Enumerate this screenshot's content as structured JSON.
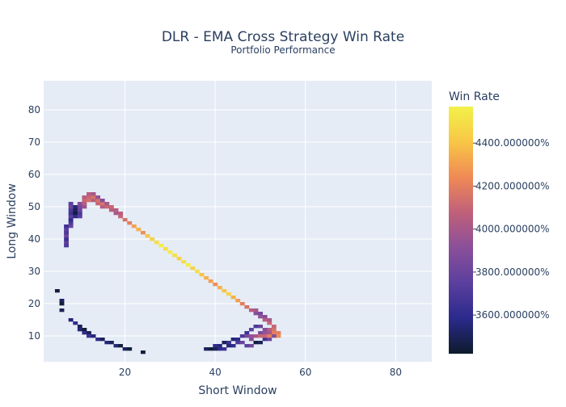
{
  "chart_data": {
    "type": "heatmap",
    "title": "DLR - EMA Cross Strategy Win Rate",
    "subtitle": "Portfolio Performance",
    "xlabel": "Short Window",
    "ylabel": "Long Window",
    "xlim": [
      2,
      88
    ],
    "ylim": [
      2,
      89
    ],
    "x_ticks": [
      "20",
      "40",
      "60",
      "80"
    ],
    "y_ticks": [
      "10",
      "20",
      "30",
      "40",
      "50",
      "60",
      "70",
      "80"
    ],
    "x_tick_values": [
      20,
      40,
      60,
      80
    ],
    "y_tick_values": [
      10,
      20,
      30,
      40,
      50,
      60,
      70,
      80
    ],
    "colorbar": {
      "title": "Win Rate",
      "min": 3420,
      "max": 4570,
      "tick_values": [
        3600,
        3800,
        4000,
        4200,
        4400
      ],
      "tick_labels": [
        "3600.000000%",
        "3800.000000%",
        "4000.000000%",
        "4200.000000%",
        "4400.000000%"
      ]
    },
    "grid": true,
    "colorscale": [
      "#0d1b2a",
      "#2b2a8c",
      "#5b3f9e",
      "#8a4f9a",
      "#c0607a",
      "#f08a55",
      "#f8c646",
      "#f2f24a"
    ],
    "cells": [
      [
        5,
        24,
        3450
      ],
      [
        6,
        18,
        3500
      ],
      [
        6,
        20,
        3450
      ],
      [
        6,
        21,
        3500
      ],
      [
        8,
        15,
        3550
      ],
      [
        9,
        14,
        3600
      ],
      [
        10,
        13,
        3500
      ],
      [
        10,
        12,
        3550
      ],
      [
        11,
        12,
        3450
      ],
      [
        11,
        11,
        3600
      ],
      [
        12,
        11,
        3500
      ],
      [
        12,
        10,
        3650
      ],
      [
        13,
        10,
        3550
      ],
      [
        14,
        9,
        3600
      ],
      [
        15,
        9,
        3500
      ],
      [
        16,
        8,
        3550
      ],
      [
        17,
        8,
        3500
      ],
      [
        18,
        7,
        3550
      ],
      [
        19,
        7,
        3450
      ],
      [
        20,
        6,
        3500
      ],
      [
        21,
        6,
        3450
      ],
      [
        24,
        5,
        3450
      ],
      [
        7,
        38,
        3700
      ],
      [
        7,
        39,
        3750
      ],
      [
        7,
        40,
        3650
      ],
      [
        7,
        41,
        3800
      ],
      [
        7,
        42,
        3700
      ],
      [
        7,
        43,
        3750
      ],
      [
        7,
        44,
        3650
      ],
      [
        8,
        44,
        3800
      ],
      [
        8,
        45,
        3700
      ],
      [
        8,
        46,
        3600
      ],
      [
        8,
        47,
        3750
      ],
      [
        8,
        48,
        3650
      ],
      [
        8,
        49,
        3700
      ],
      [
        8,
        50,
        3800
      ],
      [
        8,
        51,
        3750
      ],
      [
        9,
        49,
        3500
      ],
      [
        9,
        48,
        3450
      ],
      [
        9,
        47,
        3600
      ],
      [
        9,
        50,
        3550
      ],
      [
        10,
        47,
        3750
      ],
      [
        10,
        48,
        3700
      ],
      [
        10,
        49,
        3800
      ],
      [
        10,
        50,
        3850
      ],
      [
        10,
        51,
        3900
      ],
      [
        11,
        50,
        3950
      ],
      [
        11,
        51,
        4050
      ],
      [
        11,
        52,
        4100
      ],
      [
        11,
        53,
        4050
      ],
      [
        12,
        52,
        4150
      ],
      [
        12,
        53,
        4100
      ],
      [
        12,
        54,
        4050
      ],
      [
        13,
        52,
        4050
      ],
      [
        13,
        53,
        4150
      ],
      [
        13,
        54,
        4000
      ],
      [
        14,
        51,
        4100
      ],
      [
        14,
        52,
        4150
      ],
      [
        14,
        53,
        3950
      ],
      [
        15,
        50,
        4050
      ],
      [
        15,
        51,
        4150
      ],
      [
        15,
        52,
        3900
      ],
      [
        16,
        50,
        4100
      ],
      [
        16,
        51,
        4000
      ],
      [
        17,
        49,
        4050
      ],
      [
        17,
        50,
        4100
      ],
      [
        18,
        48,
        4000
      ],
      [
        18,
        49,
        4050
      ],
      [
        19,
        47,
        4100
      ],
      [
        19,
        48,
        4050
      ],
      [
        20,
        46,
        4150
      ],
      [
        21,
        45,
        4200
      ],
      [
        22,
        44,
        4300
      ],
      [
        23,
        43,
        4350
      ],
      [
        24,
        42,
        4250
      ],
      [
        25,
        41,
        4400
      ],
      [
        26,
        40,
        4450
      ],
      [
        27,
        39,
        4500
      ],
      [
        28,
        38,
        4550
      ],
      [
        29,
        37,
        4500
      ],
      [
        30,
        36,
        4550
      ],
      [
        31,
        35,
        4500
      ],
      [
        32,
        34,
        4450
      ],
      [
        33,
        33,
        4500
      ],
      [
        34,
        32,
        4550
      ],
      [
        35,
        31,
        4450
      ],
      [
        36,
        30,
        4500
      ],
      [
        37,
        29,
        4400
      ],
      [
        38,
        28,
        4350
      ],
      [
        39,
        27,
        4300
      ],
      [
        40,
        26,
        4250
      ],
      [
        41,
        25,
        4350
      ],
      [
        42,
        24,
        4400
      ],
      [
        43,
        23,
        4450
      ],
      [
        44,
        22,
        4350
      ],
      [
        45,
        21,
        4300
      ],
      [
        46,
        20,
        4200
      ],
      [
        47,
        19,
        4150
      ],
      [
        48,
        18,
        4050
      ],
      [
        49,
        17,
        3900
      ],
      [
        49,
        18,
        4000
      ],
      [
        50,
        16,
        3950
      ],
      [
        50,
        17,
        3850
      ],
      [
        51,
        15,
        4050
      ],
      [
        51,
        16,
        3900
      ],
      [
        52,
        14,
        4100
      ],
      [
        52,
        15,
        4000
      ],
      [
        53,
        12,
        4150
      ],
      [
        53,
        13,
        4100
      ],
      [
        54,
        11,
        4200
      ],
      [
        54,
        10,
        4250
      ],
      [
        53,
        11,
        4200
      ],
      [
        52,
        12,
        4050
      ],
      [
        51,
        12,
        3900
      ],
      [
        50,
        13,
        3800
      ],
      [
        49,
        13,
        3700
      ],
      [
        48,
        12,
        3750
      ],
      [
        47,
        11,
        3650
      ],
      [
        46,
        10,
        3700
      ],
      [
        45,
        9,
        3600
      ],
      [
        44,
        9,
        3550
      ],
      [
        43,
        8,
        3650
      ],
      [
        42,
        8,
        3500
      ],
      [
        41,
        7,
        3550
      ],
      [
        40,
        7,
        3600
      ],
      [
        39,
        6,
        3450
      ],
      [
        38,
        6,
        3500
      ],
      [
        45,
        8,
        3700
      ],
      [
        46,
        8,
        3800
      ],
      [
        47,
        7,
        3750
      ],
      [
        48,
        7,
        3850
      ],
      [
        49,
        8,
        3450
      ],
      [
        50,
        8,
        3500
      ],
      [
        51,
        9,
        3650
      ],
      [
        52,
        9,
        3800
      ],
      [
        53,
        10,
        3900
      ],
      [
        44,
        7,
        3600
      ],
      [
        43,
        7,
        3550
      ],
      [
        42,
        6,
        3650
      ],
      [
        41,
        6,
        3600
      ],
      [
        40,
        6,
        3500
      ],
      [
        50,
        11,
        3850
      ],
      [
        51,
        11,
        3950
      ],
      [
        52,
        11,
        4000
      ],
      [
        51,
        10,
        4100
      ],
      [
        52,
        10,
        4200
      ],
      [
        48,
        9,
        3900
      ],
      [
        49,
        10,
        4000
      ],
      [
        50,
        10,
        4100
      ],
      [
        47,
        10,
        3850
      ],
      [
        48,
        10,
        3950
      ]
    ]
  }
}
